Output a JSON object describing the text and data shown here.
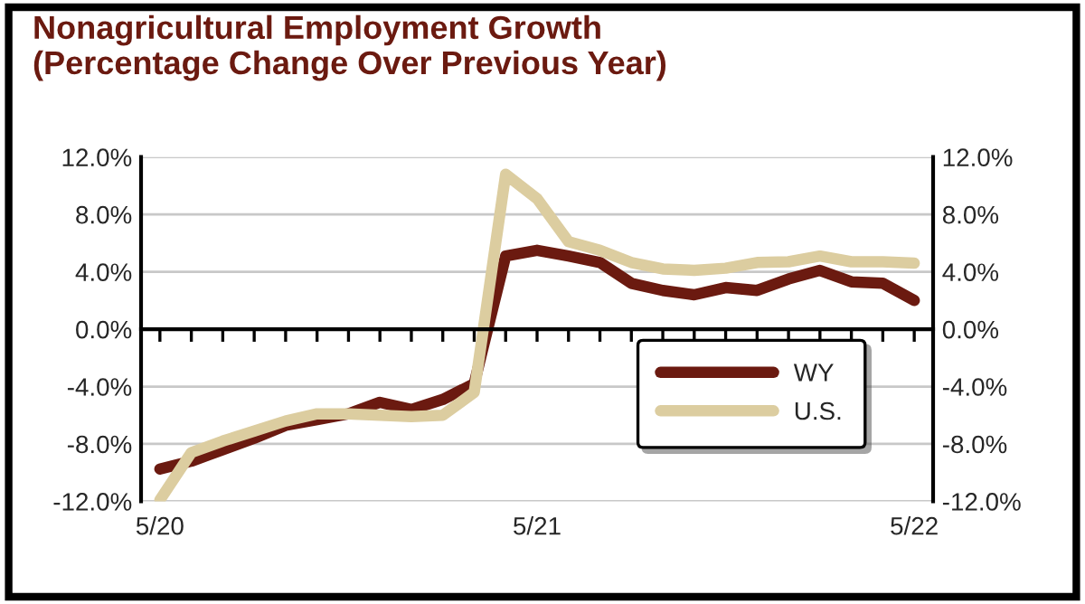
{
  "chart_data": {
    "type": "line",
    "title": "Nonagricultural Employment Growth\n(Percentage Change Over Previous Year)",
    "categories": [
      "5/20",
      null,
      null,
      null,
      null,
      null,
      null,
      null,
      null,
      null,
      null,
      null,
      "5/21",
      null,
      null,
      null,
      null,
      null,
      null,
      null,
      null,
      null,
      null,
      null,
      "5/22"
    ],
    "series": [
      {
        "name": "WY",
        "color": "#6b1a10",
        "values": [
          -9.75,
          -9.2,
          -8.4,
          -7.6,
          -6.7,
          -6.3,
          -5.9,
          -5.1,
          -5.6,
          -4.9,
          -3.8,
          5.1,
          5.5,
          5.1,
          4.65,
          3.2,
          2.7,
          2.4,
          2.9,
          2.7,
          3.5,
          4.1,
          3.3,
          3.2,
          2.0
        ]
      },
      {
        "name": "U.S.",
        "color": "#dccda0",
        "values": [
          -11.9,
          -8.6,
          -7.8,
          -7.1,
          -6.4,
          -5.9,
          -5.9,
          -6.0,
          -6.1,
          -6.0,
          -4.4,
          10.8,
          9.1,
          6.1,
          5.5,
          4.65,
          4.2,
          4.1,
          4.25,
          4.65,
          4.7,
          5.1,
          4.7,
          4.7,
          4.6
        ]
      }
    ],
    "ylim": [
      -12,
      12
    ],
    "yticks": [
      {
        "value": -12,
        "label": "-12.0%"
      },
      {
        "value": -8,
        "label": "-8.0%"
      },
      {
        "value": -4,
        "label": "-4.0%"
      },
      {
        "value": 0,
        "label": "0.0%"
      },
      {
        "value": 4,
        "label": "4.0%"
      },
      {
        "value": 8,
        "label": "8.0%"
      },
      {
        "value": 12,
        "label": "12.0%"
      }
    ],
    "y2lim": [
      -12,
      12
    ],
    "y2ticks": [
      {
        "value": -12,
        "label": "-12.0%"
      },
      {
        "value": -8,
        "label": "-8.0%"
      },
      {
        "value": -4,
        "label": "-4.0%"
      },
      {
        "value": 0,
        "label": "0.0%"
      },
      {
        "value": 4,
        "label": "4.0%"
      },
      {
        "value": 8,
        "label": "8.0%"
      },
      {
        "value": 12,
        "label": "12.0%"
      }
    ],
    "grid": "y",
    "legend": "bottom right",
    "marker": "none",
    "line_style": "solid"
  }
}
